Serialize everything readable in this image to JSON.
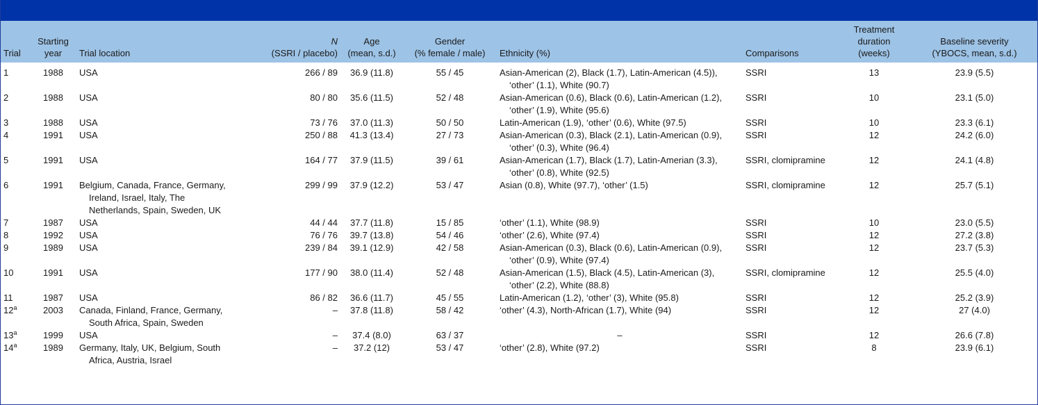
{
  "header": {
    "trial": "Trial",
    "starting_year": [
      "Starting",
      "year"
    ],
    "location": "Trial location",
    "n": [
      "N",
      "(SSRI / placebo)"
    ],
    "age": [
      "Age",
      "(mean, s.d.)"
    ],
    "gender": [
      "Gender",
      "(% female / male)"
    ],
    "ethnicity": "Ethnicity (%)",
    "comparisons": "Comparisons",
    "duration": [
      "Treatment",
      "duration",
      "(weeks)"
    ],
    "severity": [
      "Baseline severity",
      "(YBOCS, mean, s.d.)"
    ]
  },
  "rows": [
    {
      "trial": "1",
      "sup": "",
      "year": "1988",
      "location": [
        "USA"
      ],
      "n": "266 / 89",
      "age": "36.9 (11.8)",
      "gender": "55 / 45",
      "ethnicity": [
        "Asian-American (2), Black (1.7), Latin-American (4.5)),",
        "‘other’ (1.1), White (90.7)"
      ],
      "comparisons": "SSRI",
      "duration": "13",
      "severity": "23.9 (5.5)"
    },
    {
      "trial": "2",
      "sup": "",
      "year": "1988",
      "location": [
        "USA"
      ],
      "n": "80 / 80",
      "age": "35.6 (11.5)",
      "gender": "52 / 48",
      "ethnicity": [
        "Asian-American (0.6), Black (0.6), Latin-American (1.2),",
        "‘other’ (1.9), White (95.6)"
      ],
      "comparisons": "SSRI",
      "duration": "10",
      "severity": "23.1 (5.0)"
    },
    {
      "trial": "3",
      "sup": "",
      "year": "1988",
      "location": [
        "USA"
      ],
      "n": "73 / 76",
      "age": "37.0 (11.3)",
      "gender": "50 / 50",
      "ethnicity": [
        "Latin-American (1.9), ‘other’ (0.6), White (97.5)"
      ],
      "comparisons": "SSRI",
      "duration": "10",
      "severity": "23.3 (6.1)"
    },
    {
      "trial": "4",
      "sup": "",
      "year": "1991",
      "location": [
        "USA"
      ],
      "n": "250 / 88",
      "age": "41.3 (13.4)",
      "gender": "27 / 73",
      "ethnicity": [
        "Asian-American (0.3), Black (2.1), Latin-American (0.9),",
        "‘other’ (0.3), White (96.4)"
      ],
      "comparisons": "SSRI",
      "duration": "12",
      "severity": "24.2 (6.0)"
    },
    {
      "trial": "5",
      "sup": "",
      "year": "1991",
      "location": [
        "USA"
      ],
      "n": "164 / 77",
      "age": "37.9 (11.5)",
      "gender": "39 / 61",
      "ethnicity": [
        "Asian-American (1.7), Black (1.7), Latin-Amerian (3.3),",
        "‘other’ (0.8), White (92.5)"
      ],
      "comparisons": "SSRI, clomipramine",
      "duration": "12",
      "severity": "24.1 (4.8)"
    },
    {
      "trial": "6",
      "sup": "",
      "year": "1991",
      "location": [
        "Belgium, Canada, France, Germany,",
        "Ireland, Israel, Italy, The",
        "Netherlands, Spain, Sweden, UK"
      ],
      "n": "299 / 99",
      "age": "37.9 (12.2)",
      "gender": "53 / 47",
      "ethnicity": [
        "Asian (0.8), White (97.7), ‘other’ (1.5)"
      ],
      "comparisons": "SSRI, clomipramine",
      "duration": "12",
      "severity": "25.7 (5.1)"
    },
    {
      "trial": "7",
      "sup": "",
      "year": "1987",
      "location": [
        "USA"
      ],
      "n": "44 / 44",
      "age": "37.7 (11.8)",
      "gender": "15 / 85",
      "ethnicity": [
        "‘other’ (1.1), White (98.9)"
      ],
      "comparisons": "SSRI",
      "duration": "10",
      "severity": "23.0 (5.5)"
    },
    {
      "trial": "8",
      "sup": "",
      "year": "1992",
      "location": [
        "USA"
      ],
      "n": "76 / 76",
      "age": "39.7 (13.8)",
      "gender": "54 / 46",
      "ethnicity": [
        "‘other’ (2.6), White (97.4)"
      ],
      "comparisons": "SSRI",
      "duration": "12",
      "severity": "27.2 (3.8)"
    },
    {
      "trial": "9",
      "sup": "",
      "year": "1989",
      "location": [
        "USA"
      ],
      "n": "239 / 84",
      "age": "39.1 (12.9)",
      "gender": "42 / 58",
      "ethnicity": [
        "Asian-American (0.3), Black (0.6), Latin-American (0.9),",
        "‘other’ (0.9), White (97.4)"
      ],
      "comparisons": "SSRI",
      "duration": "12",
      "severity": "23.7 (5.3)"
    },
    {
      "trial": "10",
      "sup": "",
      "year": "1991",
      "location": [
        "USA"
      ],
      "n": "177 / 90",
      "age": "38.0 (11.4)",
      "gender": "52 / 48",
      "ethnicity": [
        "Asian-American (1.5), Black (4.5), Latin-American (3),",
        "‘other’ (2.2), White (88.8)"
      ],
      "comparisons": "SSRI, clomipramine",
      "duration": "12",
      "severity": "25.5 (4.0)"
    },
    {
      "trial": "11",
      "sup": "",
      "year": "1987",
      "location": [
        "USA"
      ],
      "n": "86 / 82",
      "age": "36.6 (11.7)",
      "gender": "45 / 55",
      "ethnicity": [
        "Latin-American (1.2), ‘other’ (3), White (95.8)"
      ],
      "comparisons": "SSRI",
      "duration": "12",
      "severity": "25.2 (3.9)"
    },
    {
      "trial": "12",
      "sup": "a",
      "year": "2003",
      "location": [
        "Canada, Finland, France, Germany,",
        "South Africa, Spain, Sweden"
      ],
      "n": "–",
      "age": "37.8 (11.8)",
      "gender": "58 / 42",
      "ethnicity": [
        "‘other’ (4.3), North-African (1.7), White (94)"
      ],
      "comparisons": "SSRI",
      "duration": "12",
      "severity": "27 (4.0)"
    },
    {
      "trial": "13",
      "sup": "a",
      "year": "1999",
      "location": [
        "USA"
      ],
      "n": "–",
      "age": "37.4 (8.0)",
      "gender": "63 / 37",
      "ethnicity": [
        "–"
      ],
      "ethnicity_center": true,
      "comparisons": "SSRI",
      "duration": "12",
      "severity": "26.6 (7.8)"
    },
    {
      "trial": "14",
      "sup": "a",
      "year": "1989",
      "location": [
        "Germany, Italy, UK, Belgium, South",
        "Africa, Austria, Israel"
      ],
      "n": "–",
      "age": "37.2 (12)",
      "gender": "53 / 47",
      "ethnicity": [
        "‘other’ (2.8), White (97.2)"
      ],
      "comparisons": "SSRI",
      "duration": "8",
      "severity": "23.9 (6.1)"
    }
  ]
}
